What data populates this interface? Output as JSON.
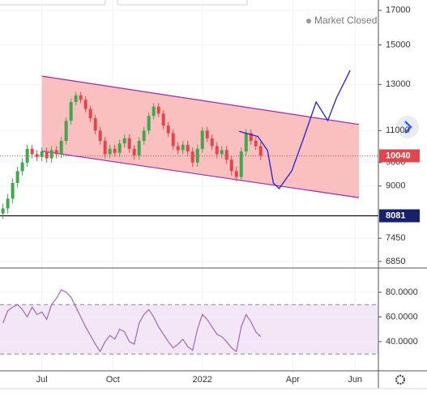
{
  "chart_data": {
    "type": "candlestick",
    "status": "Market Closed",
    "x": [
      -40,
      -35,
      -30,
      -25,
      -20,
      -15,
      -10,
      -5,
      0,
      5,
      10,
      15,
      20,
      25,
      30,
      35,
      40,
      45,
      50,
      55,
      60,
      65,
      70,
      75,
      80,
      85,
      90,
      95,
      100,
      105,
      110,
      115,
      120,
      125,
      130,
      135,
      140,
      145,
      150,
      155,
      160,
      165,
      170,
      175,
      180,
      185,
      190,
      195,
      200,
      205,
      210,
      215,
      220,
      225
    ],
    "open": [
      8150,
      8300,
      8600,
      9100,
      9500,
      9800,
      10300,
      10100,
      10000,
      10200,
      9950,
      10250,
      10100,
      10600,
      11400,
      12200,
      12500,
      12300,
      11900,
      11500,
      11000,
      10600,
      10100,
      10300,
      10150,
      10500,
      10700,
      10300,
      10050,
      10600,
      11000,
      11600,
      12000,
      11700,
      11200,
      10900,
      10400,
      10250,
      10450,
      10200,
      9800,
      10300,
      11000,
      10700,
      10400,
      10100,
      10250,
      9900,
      9500,
      9300,
      10200,
      10900,
      10600,
      10400
    ],
    "high": [
      8450,
      8750,
      9250,
      9650,
      9950,
      10450,
      10450,
      10250,
      10350,
      10350,
      10400,
      10400,
      10750,
      11550,
      12350,
      12650,
      12650,
      12450,
      12050,
      11650,
      11150,
      10750,
      10450,
      10450,
      10650,
      10850,
      10850,
      10450,
      10750,
      11150,
      11750,
      12150,
      12150,
      11850,
      11350,
      11050,
      10550,
      10600,
      10600,
      10350,
      10450,
      11150,
      11150,
      10850,
      10550,
      10400,
      10400,
      10050,
      9650,
      10350,
      11050,
      11050,
      10750,
      10550
    ],
    "low": [
      8000,
      8150,
      8450,
      8950,
      9350,
      9650,
      9950,
      9850,
      9850,
      9800,
      9800,
      9950,
      9950,
      10450,
      11250,
      12050,
      12150,
      11750,
      11350,
      10850,
      10450,
      9950,
      9950,
      10000,
      10000,
      10350,
      10150,
      9900,
      9900,
      10450,
      10850,
      11450,
      11550,
      11050,
      10750,
      10250,
      10100,
      10100,
      10050,
      9650,
      9650,
      10150,
      10550,
      10250,
      9950,
      9950,
      9750,
      9350,
      9150,
      9150,
      10050,
      10450,
      10250,
      9890
    ],
    "close": [
      8300,
      8600,
      9100,
      9500,
      9800,
      10300,
      10100,
      10000,
      10200,
      9950,
      10250,
      10100,
      10600,
      11400,
      12200,
      12500,
      12300,
      11900,
      11500,
      11000,
      10600,
      10100,
      10300,
      10150,
      10500,
      10700,
      10300,
      10050,
      10600,
      11000,
      11600,
      12000,
      11700,
      11200,
      10900,
      10400,
      10250,
      10450,
      10200,
      9800,
      10300,
      11000,
      10700,
      10400,
      10100,
      10250,
      9900,
      9500,
      9300,
      10200,
      10900,
      10600,
      10400,
      10040
    ],
    "up_color": "#3fa84a",
    "down_color": "#e0474c",
    "xlim": [
      -43,
      346
    ],
    "xticks": [
      {
        "value": 0,
        "label": "Jul"
      },
      {
        "value": 73,
        "label": "Oct"
      },
      {
        "value": 165,
        "label": "2022"
      },
      {
        "value": 258,
        "label": "Apr"
      },
      {
        "value": 322,
        "label": "Jun"
      }
    ],
    "ylim": [
      6690,
      17650
    ],
    "log_scale": true,
    "grid": true,
    "yticks": [
      17000,
      15000,
      13000,
      11000,
      9800,
      9000,
      7450,
      6850
    ],
    "last_price": 10040,
    "level": 8081,
    "channel": {
      "upper": {
        "x": [
          0,
          326
        ],
        "y": [
          13400,
          11250
        ]
      },
      "lower": {
        "x": [
          0,
          326
        ],
        "y": [
          10210,
          8630
        ]
      },
      "color": "#9c27b0",
      "fill": "#f9b5b5"
    },
    "projection": {
      "x": [
        203,
        222,
        232,
        238,
        244,
        257,
        269,
        282,
        294,
        303,
        317
      ],
      "y": [
        10970,
        10770,
        10240,
        9100,
        8920,
        9510,
        10690,
        12200,
        11410,
        12390,
        13680
      ],
      "color": "#1f1fcc"
    },
    "rsi": {
      "values": [
        55,
        65,
        68,
        70,
        66,
        60,
        68,
        62,
        64,
        58,
        70,
        75,
        82,
        80,
        76,
        68,
        60,
        52,
        45,
        38,
        32,
        40,
        45,
        42,
        50,
        48,
        40,
        38,
        55,
        62,
        66,
        60,
        52,
        46,
        40,
        35,
        38,
        42,
        36,
        33,
        50,
        62,
        58,
        52,
        46,
        44,
        40,
        35,
        32,
        52,
        62,
        56,
        48,
        44
      ],
      "color": "#9c5bb8",
      "ylim": [
        16.4,
        99
      ],
      "yticks": [
        {
          "value": 80,
          "label": "80.0000"
        },
        {
          "value": 60,
          "label": "60.0000"
        },
        {
          "value": 40,
          "label": "40.0000"
        }
      ],
      "bands": [
        30,
        70
      ]
    }
  }
}
